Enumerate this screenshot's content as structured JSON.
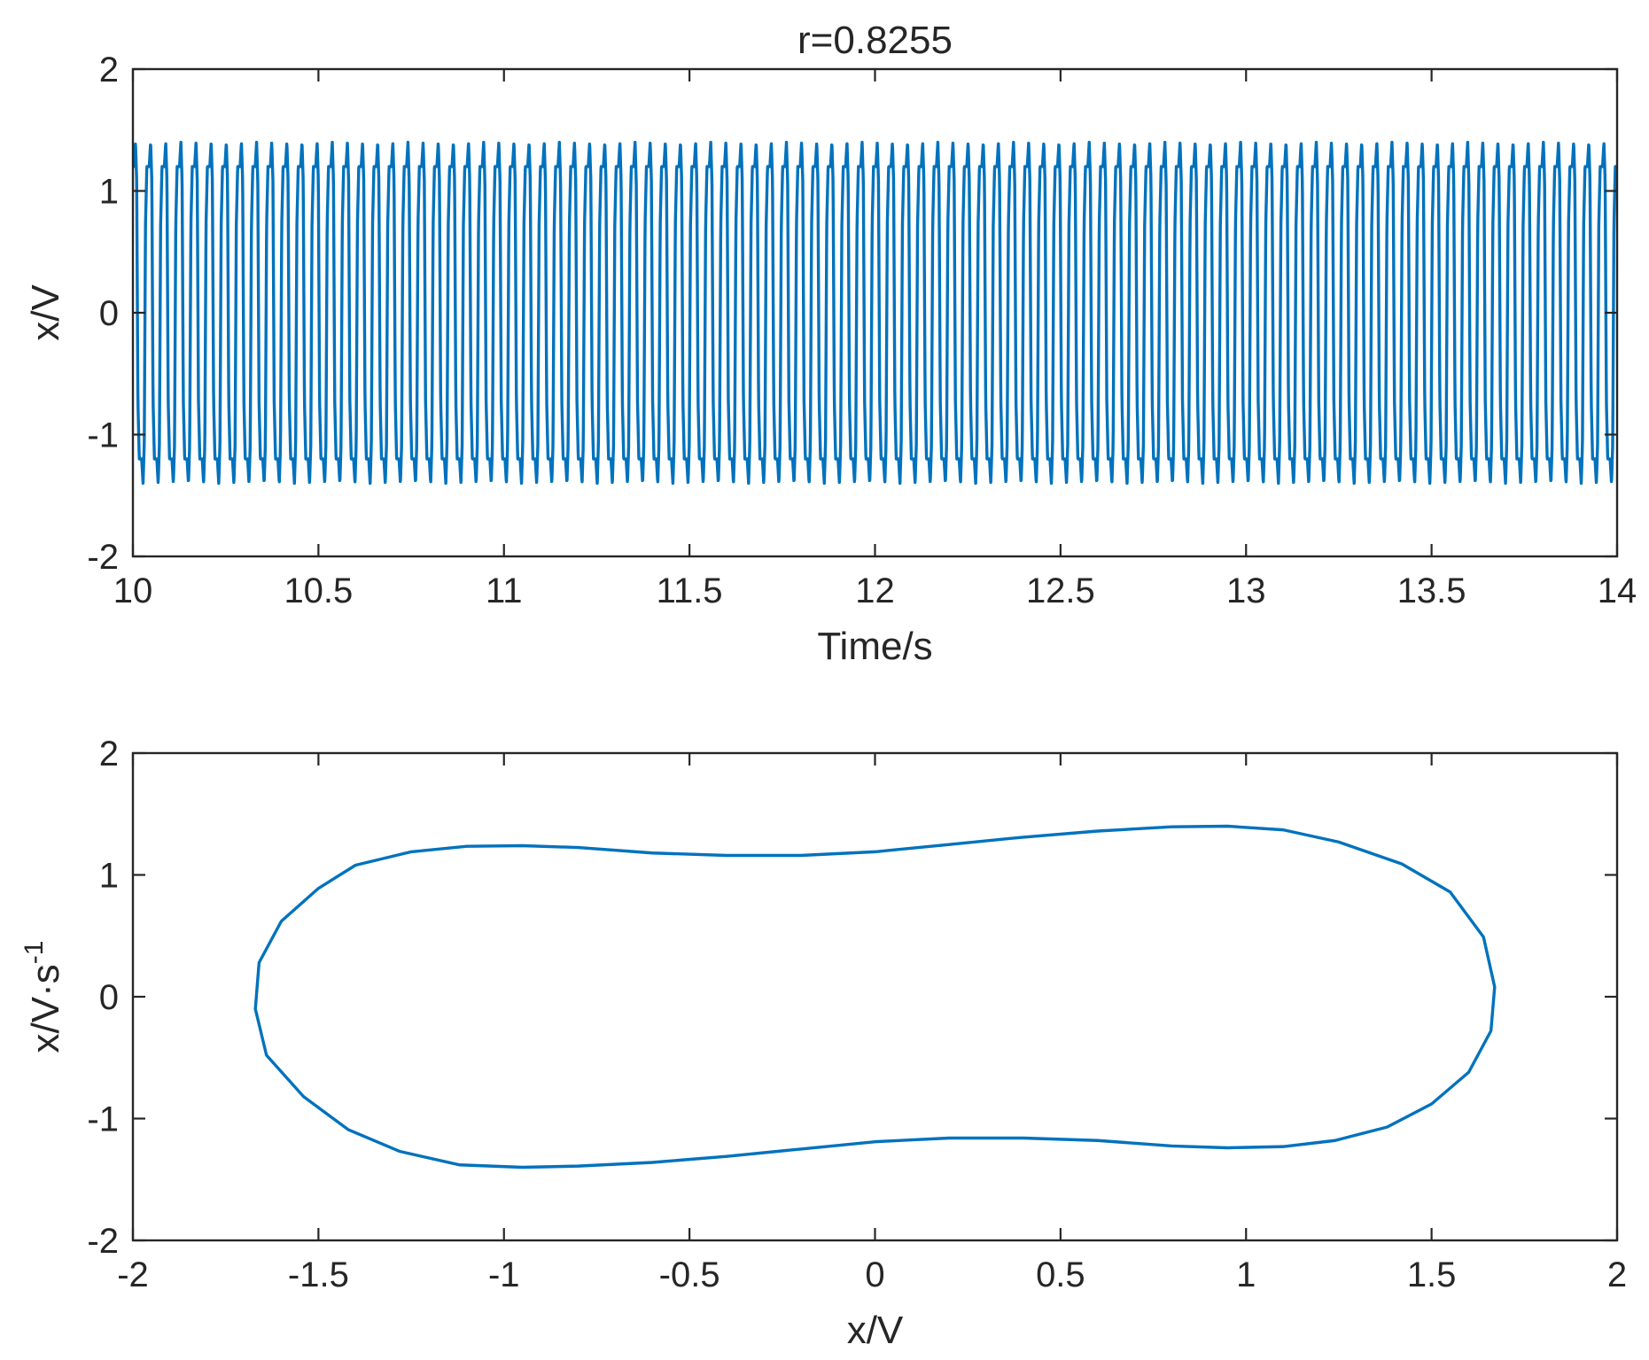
{
  "colors": {
    "series": "#0072BD",
    "axis": "#262626",
    "background": "#ffffff"
  },
  "chart_data": [
    {
      "type": "line",
      "title": "r=0.8255",
      "xlabel": "Time/s",
      "ylabel": "x/V",
      "xlim": [
        10,
        14
      ],
      "ylim": [
        -2,
        2
      ],
      "xticks": [
        10,
        10.5,
        11,
        11.5,
        12,
        12.5,
        13,
        13.5,
        14
      ],
      "xtick_labels": [
        "10",
        "10.5",
        "11",
        "11.5",
        "12",
        "12.5",
        "13",
        "13.5",
        "14"
      ],
      "yticks": [
        -2,
        -1,
        0,
        1,
        2
      ],
      "ytick_labels": [
        "-2",
        "-1",
        "0",
        "1",
        "2"
      ],
      "grid": false,
      "series": [
        {
          "signal": "periodic oscillation",
          "t_start": 10,
          "t_end": 14,
          "period": 0.0408,
          "peak": 1.4,
          "plateau": 1.2,
          "trough": -1.4,
          "color": "#0072BD"
        }
      ]
    },
    {
      "type": "line",
      "title": "",
      "xlabel": "x/V",
      "ylabel": "x/V·s",
      "ylabel_superscript": "-1",
      "xlim": [
        -2,
        2
      ],
      "ylim": [
        -2,
        2
      ],
      "xticks": [
        -2,
        -1.5,
        -1,
        -0.5,
        0,
        0.5,
        1,
        1.5,
        2
      ],
      "xtick_labels": [
        "-2",
        "-1.5",
        "-1",
        "-0.5",
        "0",
        "0.5",
        "1",
        "1.5",
        "2"
      ],
      "yticks": [
        -2,
        -1,
        0,
        1,
        2
      ],
      "ytick_labels": [
        "-2",
        "-1",
        "0",
        "1",
        "2"
      ],
      "grid": false,
      "series": [
        {
          "closed": true,
          "color": "#0072BD",
          "x": [
            -1.67,
            -1.66,
            -1.6,
            -1.5,
            -1.4,
            -1.25,
            -1.1,
            -0.95,
            -0.8,
            -0.6,
            -0.4,
            -0.2,
            0.0,
            0.2,
            0.4,
            0.6,
            0.8,
            0.95,
            1.1,
            1.25,
            1.42,
            1.55,
            1.64,
            1.67,
            1.66,
            1.6,
            1.5,
            1.38,
            1.24,
            1.1,
            0.95,
            0.8,
            0.6,
            0.4,
            0.2,
            0.0,
            -0.2,
            -0.4,
            -0.6,
            -0.8,
            -0.95,
            -1.12,
            -1.28,
            -1.42,
            -1.54,
            -1.64
          ],
          "y": [
            -0.1,
            0.28,
            0.62,
            0.89,
            1.08,
            1.19,
            1.235,
            1.24,
            1.225,
            1.18,
            1.16,
            1.16,
            1.19,
            1.25,
            1.31,
            1.36,
            1.395,
            1.4,
            1.37,
            1.27,
            1.09,
            0.86,
            0.49,
            0.08,
            -0.28,
            -0.62,
            -0.88,
            -1.07,
            -1.18,
            -1.23,
            -1.24,
            -1.225,
            -1.18,
            -1.16,
            -1.16,
            -1.19,
            -1.25,
            -1.31,
            -1.36,
            -1.39,
            -1.4,
            -1.38,
            -1.27,
            -1.09,
            -0.82,
            -0.48
          ]
        }
      ]
    }
  ]
}
